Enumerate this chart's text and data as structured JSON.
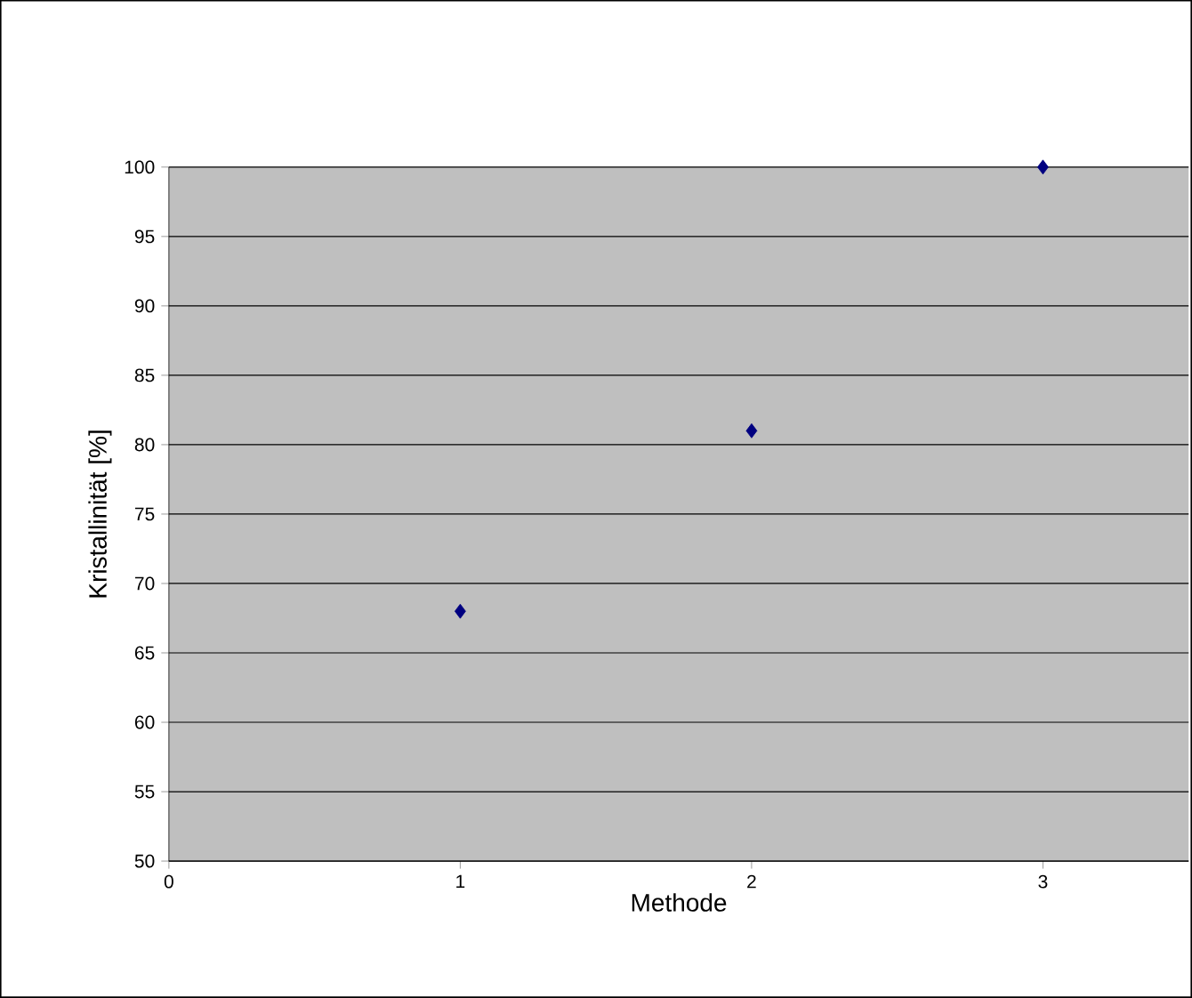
{
  "chart_data": {
    "type": "scatter",
    "xlabel": "Methode",
    "ylabel": "Kristallinität [%]",
    "x": [
      1,
      2,
      3
    ],
    "values": [
      68,
      81,
      100
    ],
    "color": "#000080",
    "xlim": [
      0,
      3.5
    ],
    "ylim": [
      50,
      100
    ],
    "xticks": [
      0,
      1,
      2,
      3
    ],
    "yticks": [
      50,
      55,
      60,
      65,
      70,
      75,
      80,
      85,
      90,
      95,
      100
    ],
    "grid": "y",
    "marker": "diamond"
  }
}
